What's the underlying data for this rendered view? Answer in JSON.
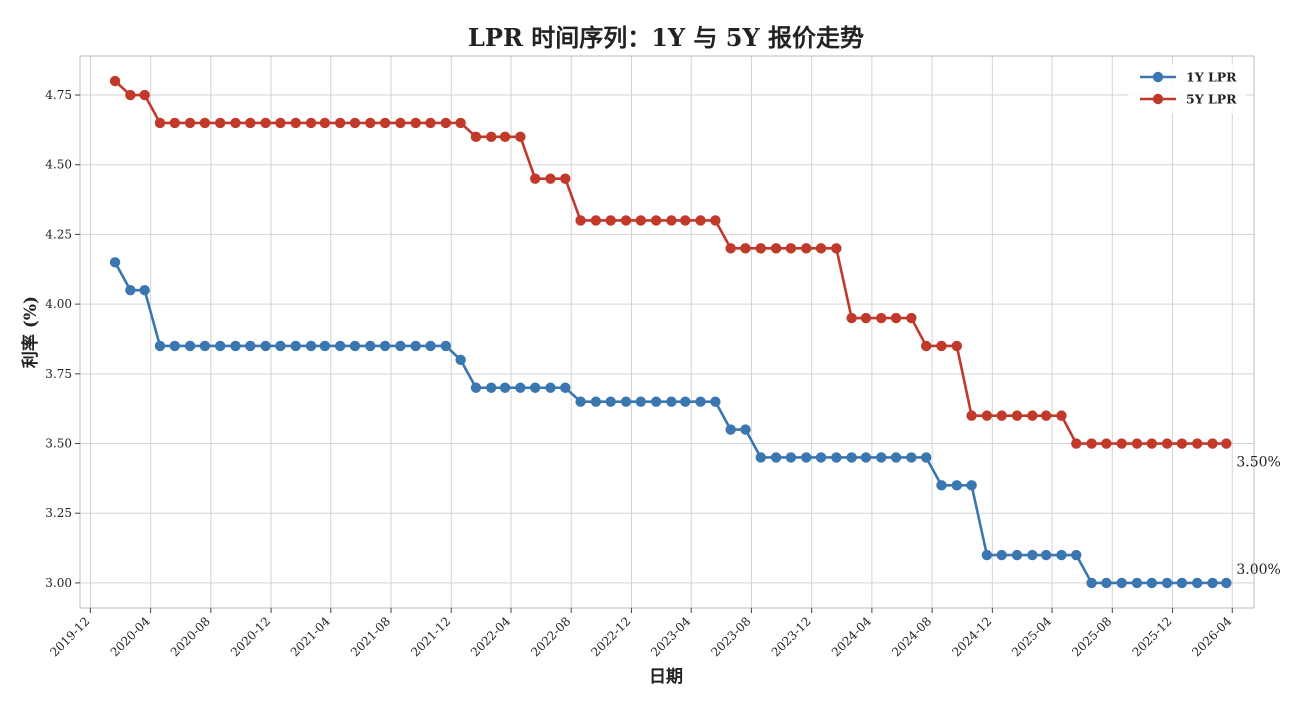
{
  "chart_data": {
    "type": "line",
    "title": "LPR 时间序列：1Y 与 5Y 报价走势",
    "xlabel": "日期",
    "ylabel": "利率 (%)",
    "x_tick_labels": [
      "2019-12",
      "2020-04",
      "2020-08",
      "2020-12",
      "2021-04",
      "2021-08",
      "2021-12",
      "2022-04",
      "2022-08",
      "2022-12",
      "2023-04",
      "2023-08",
      "2023-12",
      "2024-04",
      "2024-08",
      "2024-12",
      "2025-04",
      "2025-08",
      "2025-12",
      "2026-04"
    ],
    "y_ticks": [
      3.0,
      3.25,
      3.5,
      3.75,
      4.0,
      4.25,
      4.5,
      4.75
    ],
    "ylim": [
      2.91,
      4.89
    ],
    "xlim": [
      "2019-11-10",
      "2026-05-15"
    ],
    "grid": true,
    "legend_position": "top-right",
    "x": [
      "2020-01-20",
      "2020-02-20",
      "2020-03-20",
      "2020-04-20",
      "2020-05-20",
      "2020-06-20",
      "2020-07-20",
      "2020-08-20",
      "2020-09-20",
      "2020-10-20",
      "2020-11-20",
      "2020-12-20",
      "2021-01-20",
      "2021-02-20",
      "2021-03-20",
      "2021-04-20",
      "2021-05-20",
      "2021-06-20",
      "2021-07-20",
      "2021-08-20",
      "2021-09-20",
      "2021-10-20",
      "2021-11-20",
      "2021-12-20",
      "2022-01-20",
      "2022-02-20",
      "2022-03-20",
      "2022-04-20",
      "2022-05-20",
      "2022-06-20",
      "2022-07-20",
      "2022-08-20",
      "2022-09-20",
      "2022-10-20",
      "2022-11-20",
      "2022-12-20",
      "2023-01-20",
      "2023-02-20",
      "2023-03-20",
      "2023-04-20",
      "2023-05-20",
      "2023-06-20",
      "2023-07-20",
      "2023-08-20",
      "2023-09-20",
      "2023-10-20",
      "2023-11-20",
      "2023-12-20",
      "2024-01-20",
      "2024-02-20",
      "2024-03-20",
      "2024-04-20",
      "2024-05-20",
      "2024-06-20",
      "2024-07-20",
      "2024-08-20",
      "2024-09-20",
      "2024-10-20",
      "2024-11-20",
      "2024-12-20",
      "2025-01-20",
      "2025-02-20",
      "2025-03-20",
      "2025-04-20",
      "2025-05-20",
      "2025-06-20",
      "2025-07-20",
      "2025-08-20",
      "2025-09-20",
      "2025-10-20",
      "2025-11-20",
      "2025-12-20",
      "2026-01-20",
      "2026-02-20",
      "2026-03-20"
    ],
    "series": [
      {
        "name": "1Y LPR",
        "color": "#3a76af",
        "values": [
          4.15,
          4.05,
          4.05,
          3.85,
          3.85,
          3.85,
          3.85,
          3.85,
          3.85,
          3.85,
          3.85,
          3.85,
          3.85,
          3.85,
          3.85,
          3.85,
          3.85,
          3.85,
          3.85,
          3.85,
          3.85,
          3.85,
          3.85,
          3.8,
          3.7,
          3.7,
          3.7,
          3.7,
          3.7,
          3.7,
          3.7,
          3.65,
          3.65,
          3.65,
          3.65,
          3.65,
          3.65,
          3.65,
          3.65,
          3.65,
          3.65,
          3.55,
          3.55,
          3.45,
          3.45,
          3.45,
          3.45,
          3.45,
          3.45,
          3.45,
          3.45,
          3.45,
          3.45,
          3.45,
          3.45,
          3.35,
          3.35,
          3.35,
          3.1,
          3.1,
          3.1,
          3.1,
          3.1,
          3.1,
          3.1,
          3.0,
          3.0,
          3.0,
          3.0,
          3.0,
          3.0,
          3.0,
          3.0,
          3.0,
          3.0
        ],
        "end_label": "3.00%"
      },
      {
        "name": "5Y LPR",
        "color": "#c0392b",
        "values": [
          4.8,
          4.75,
          4.75,
          4.65,
          4.65,
          4.65,
          4.65,
          4.65,
          4.65,
          4.65,
          4.65,
          4.65,
          4.65,
          4.65,
          4.65,
          4.65,
          4.65,
          4.65,
          4.65,
          4.65,
          4.65,
          4.65,
          4.65,
          4.65,
          4.6,
          4.6,
          4.6,
          4.6,
          4.45,
          4.45,
          4.45,
          4.3,
          4.3,
          4.3,
          4.3,
          4.3,
          4.3,
          4.3,
          4.3,
          4.3,
          4.3,
          4.2,
          4.2,
          4.2,
          4.2,
          4.2,
          4.2,
          4.2,
          4.2,
          3.95,
          3.95,
          3.95,
          3.95,
          3.95,
          3.85,
          3.85,
          3.85,
          3.6,
          3.6,
          3.6,
          3.6,
          3.6,
          3.6,
          3.6,
          3.5,
          3.5,
          3.5,
          3.5,
          3.5,
          3.5,
          3.5,
          3.5,
          3.5,
          3.5,
          3.5
        ],
        "end_label": "3.50%"
      }
    ]
  }
}
